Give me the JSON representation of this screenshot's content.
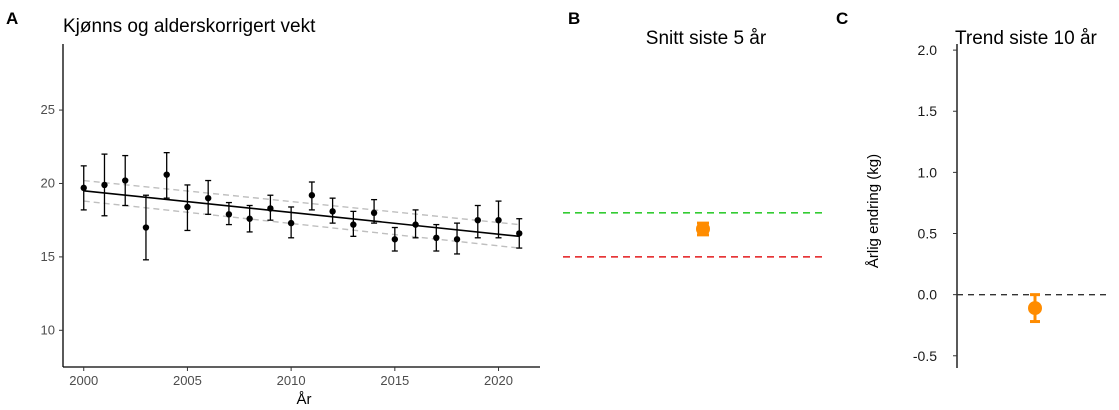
{
  "panels": {
    "a": {
      "letter": "A",
      "title": "Kjønns og alderskorrigert vekt",
      "xlabel": "År"
    },
    "b": {
      "letter": "B",
      "title": "Snitt siste 5 år"
    },
    "c": {
      "letter": "C",
      "title": "Trend siste 10 år",
      "ylabel": "Årlig endring (kg)"
    }
  },
  "colors": {
    "points": "#000000",
    "fit_line": "#000000",
    "confidence_band": "#bfbfbf",
    "estimate": "#ff8c00",
    "upper_reference": "#33cc33",
    "lower_reference": "#e31a1c",
    "zero_line": "#333333"
  },
  "chart_data": [
    {
      "type": "scatter",
      "title": "Kjønns og alderskorrigert vekt",
      "xlabel": "År",
      "ylabel": "",
      "xlim": [
        1999,
        2022
      ],
      "ylim": [
        7.5,
        29.5
      ],
      "xticks": [
        2000,
        2005,
        2010,
        2015,
        2020
      ],
      "yticks": [
        10,
        15,
        20,
        25
      ],
      "grid": false,
      "x": [
        2000,
        2001,
        2002,
        2003,
        2004,
        2005,
        2006,
        2007,
        2008,
        2009,
        2010,
        2011,
        2012,
        2013,
        2014,
        2015,
        2016,
        2017,
        2018,
        2019,
        2020,
        2021
      ],
      "y": [
        19.7,
        19.9,
        20.2,
        17.0,
        20.6,
        18.4,
        19.0,
        17.9,
        17.6,
        18.3,
        17.3,
        19.2,
        18.1,
        17.2,
        18.0,
        16.2,
        17.2,
        16.3,
        16.2,
        17.5,
        17.5,
        16.6
      ],
      "y_lower": [
        18.2,
        17.8,
        18.5,
        14.8,
        19.0,
        16.8,
        17.9,
        17.2,
        16.7,
        17.5,
        16.3,
        18.2,
        17.3,
        16.4,
        17.3,
        15.4,
        16.3,
        15.4,
        15.2,
        16.3,
        16.3,
        15.6
      ],
      "y_upper": [
        21.2,
        22.0,
        21.9,
        19.2,
        22.1,
        19.9,
        20.2,
        18.7,
        18.5,
        19.2,
        18.4,
        20.1,
        19.0,
        18.1,
        18.9,
        17.0,
        18.2,
        17.2,
        17.3,
        18.5,
        18.8,
        17.6
      ],
      "fit": {
        "x": [
          2000,
          2021
        ],
        "y": [
          19.5,
          16.4
        ]
      },
      "fit_lower": {
        "x": [
          2000,
          2021
        ],
        "y": [
          18.8,
          15.6
        ]
      },
      "fit_upper": {
        "x": [
          2000,
          2021
        ],
        "y": [
          20.2,
          17.2
        ]
      }
    },
    {
      "type": "scatter",
      "title": "Snitt siste 5 år",
      "ylim": [
        7.5,
        29.5
      ],
      "estimate": 16.9,
      "estimate_lower": 16.5,
      "estimate_upper": 17.3,
      "reference_lines": [
        18.0,
        15.0
      ]
    },
    {
      "type": "scatter",
      "title": "Trend siste 10 år",
      "ylabel": "Årlig endring (kg)",
      "ylim": [
        -0.6,
        2.05
      ],
      "yticks": [
        -0.5,
        0.0,
        0.5,
        1.0,
        1.5,
        2.0
      ],
      "ytick_labels": [
        "-0.5",
        "0.0",
        "0.5",
        "1.0",
        "1.5",
        "2.0"
      ],
      "grid": false,
      "estimate": -0.11,
      "estimate_lower": -0.22,
      "estimate_upper": 0.0,
      "reference_line": 0.0
    }
  ]
}
